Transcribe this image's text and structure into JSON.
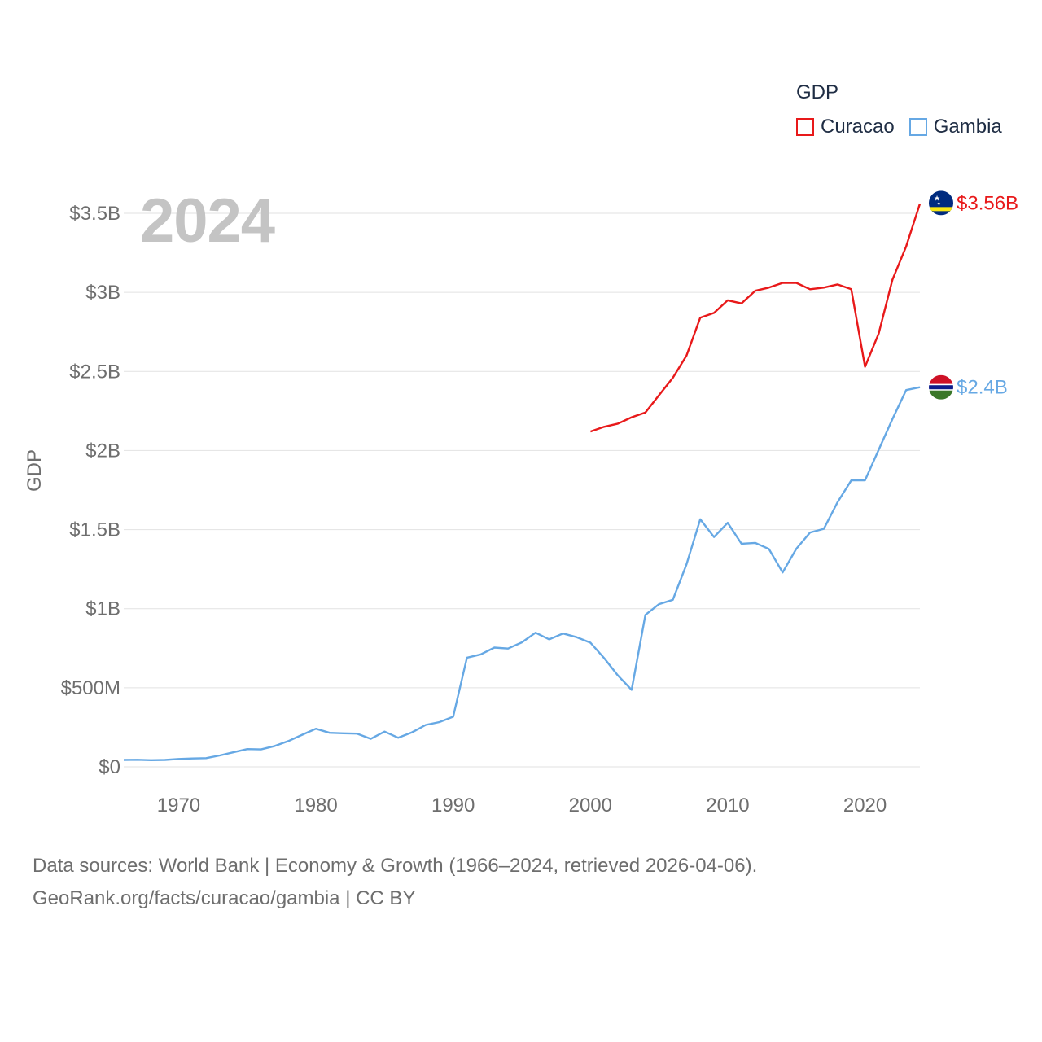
{
  "legend": {
    "title": "GDP",
    "items": [
      {
        "label": "Curacao",
        "color": "#e8191a"
      },
      {
        "label": "Gambia",
        "color": "#66a8e4"
      }
    ]
  },
  "year_watermark": "2024",
  "footer": {
    "line1": "Data sources: World Bank | Economy & Growth (1966–2024, retrieved 2026-04-06).",
    "line2": "GeoRank.org/facts/curacao/gambia | CC BY"
  },
  "chart_data": {
    "type": "line",
    "title": "GDP",
    "ylabel": "GDP",
    "xlabel": "",
    "xlim": [
      1966,
      2024
    ],
    "ylim": [
      0,
      3.5
    ],
    "y_ticks": [
      {
        "value": 0,
        "label": "$0"
      },
      {
        "value": 0.5,
        "label": "$500M"
      },
      {
        "value": 1,
        "label": "$1B"
      },
      {
        "value": 1.5,
        "label": "$1.5B"
      },
      {
        "value": 2,
        "label": "$2B"
      },
      {
        "value": 2.5,
        "label": "$2.5B"
      },
      {
        "value": 3,
        "label": "$3B"
      },
      {
        "value": 3.5,
        "label": "$3.5B"
      }
    ],
    "x_ticks": [
      1970,
      1980,
      1990,
      2000,
      2010,
      2020
    ],
    "series": [
      {
        "name": "Curacao",
        "color": "#e8191a",
        "end_label": "$3.56B",
        "x": [
          2000,
          2001,
          2002,
          2003,
          2004,
          2005,
          2006,
          2007,
          2008,
          2009,
          2010,
          2011,
          2012,
          2013,
          2014,
          2015,
          2016,
          2017,
          2018,
          2019,
          2020,
          2021,
          2022,
          2023,
          2024
        ],
        "values": [
          2.12,
          2.15,
          2.17,
          2.21,
          2.24,
          2.35,
          2.46,
          2.6,
          2.84,
          2.87,
          2.95,
          2.93,
          3.01,
          3.03,
          3.06,
          3.06,
          3.02,
          3.03,
          3.05,
          3.02,
          2.53,
          2.74,
          3.08,
          3.29,
          3.56
        ]
      },
      {
        "name": "Gambia",
        "color": "#66a8e4",
        "end_label": "$2.4B",
        "x": [
          1966,
          1967,
          1968,
          1969,
          1970,
          1971,
          1972,
          1973,
          1974,
          1975,
          1976,
          1977,
          1978,
          1979,
          1980,
          1981,
          1982,
          1983,
          1984,
          1985,
          1986,
          1987,
          1988,
          1989,
          1990,
          1991,
          1992,
          1993,
          1994,
          1995,
          1996,
          1997,
          1998,
          1999,
          2000,
          2001,
          2002,
          2003,
          2004,
          2005,
          2006,
          2007,
          2008,
          2009,
          2010,
          2011,
          2012,
          2013,
          2014,
          2015,
          2016,
          2017,
          2018,
          2019,
          2020,
          2021,
          2022,
          2023,
          2024
        ],
        "values": [
          0.044,
          0.045,
          0.042,
          0.044,
          0.05,
          0.053,
          0.055,
          0.072,
          0.092,
          0.112,
          0.11,
          0.132,
          0.163,
          0.203,
          0.241,
          0.215,
          0.212,
          0.21,
          0.177,
          0.223,
          0.184,
          0.218,
          0.265,
          0.283,
          0.317,
          0.69,
          0.711,
          0.754,
          0.748,
          0.787,
          0.848,
          0.806,
          0.843,
          0.82,
          0.785,
          0.687,
          0.578,
          0.487,
          0.961,
          1.029,
          1.056,
          1.28,
          1.565,
          1.453,
          1.543,
          1.411,
          1.416,
          1.378,
          1.229,
          1.379,
          1.482,
          1.505,
          1.673,
          1.811,
          1.812,
          2.005,
          2.199,
          2.382,
          2.4
        ]
      }
    ]
  }
}
